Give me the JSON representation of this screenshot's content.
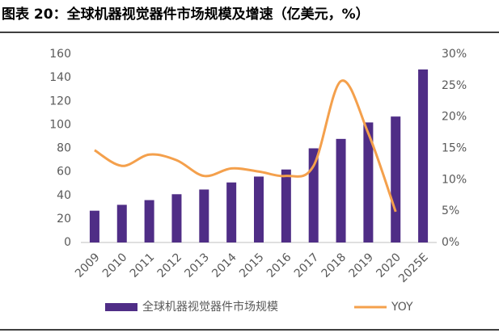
{
  "chart_data": {
    "type": "bar-line",
    "title": "图表 20：全球机器视觉器件市场规模及增速（亿美元，%）",
    "categories": [
      "2009",
      "2010",
      "2011",
      "2012",
      "2013",
      "2014",
      "2015",
      "2016",
      "2017",
      "2018",
      "2019",
      "2020",
      "2025E"
    ],
    "series": [
      {
        "name": "全球机器视觉器件市场规模",
        "type": "bar",
        "color": "#4f2d86",
        "values": [
          27,
          32,
          36,
          41,
          45,
          51,
          56,
          62,
          80,
          88,
          102,
          107,
          147
        ]
      },
      {
        "name": "YOY",
        "type": "line",
        "axis": "y2",
        "color": "#f4a04c",
        "smooth": true,
        "values": [
          14.7,
          12.2,
          14.0,
          13.1,
          10.6,
          11.8,
          11.3,
          10.6,
          12.2,
          25.7,
          17.4,
          4.9,
          null
        ]
      }
    ],
    "ylim": [
      0,
      160
    ],
    "yticks": [
      0,
      20,
      40,
      60,
      80,
      100,
      120,
      140,
      160
    ],
    "y2lim": [
      0,
      30
    ],
    "y2ticks": [
      {
        "value": 0,
        "label": "0%"
      },
      {
        "value": 5,
        "label": "5%"
      },
      {
        "value": 10,
        "label": "10%"
      },
      {
        "value": 15,
        "label": "15%"
      },
      {
        "value": 20,
        "label": "20%"
      },
      {
        "value": 25,
        "label": "25%"
      },
      {
        "value": 30,
        "label": "30%"
      }
    ],
    "grid": false,
    "legend": "bottom"
  }
}
